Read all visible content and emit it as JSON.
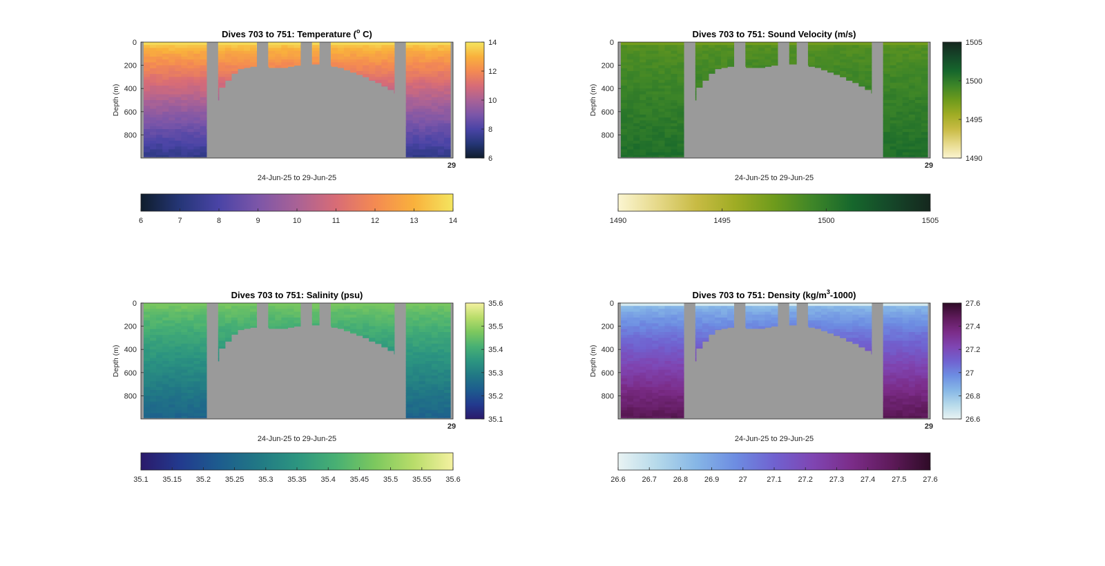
{
  "figure_title": "",
  "chart_data": [
    {
      "type": "heatmap",
      "title": "Dives 703 to 751: Temperature (°C)",
      "title_main": "Dives 703 to 751: Temperature (",
      "title_sup": "o",
      "title_tail": " C)",
      "xlabel": "24-Jun-25 to 29-Jun-25",
      "ylabel": "Depth (m)",
      "ylim": [
        0,
        1000
      ],
      "yticks": [
        "0",
        "200",
        "400",
        "600",
        "800"
      ],
      "xtick_label": "29",
      "cmap": [
        "#0f1d2c",
        "#253677",
        "#4a44a6",
        "#7c56a8",
        "#a96296",
        "#d86c76",
        "#f48a52",
        "#f9b13c",
        "#f4e55f"
      ],
      "clim": [
        6,
        14
      ],
      "side_ticks": [
        "6",
        "8",
        "10",
        "12",
        "14"
      ],
      "bottom_ticks": [
        "6",
        "7",
        "8",
        "9",
        "10",
        "11",
        "12",
        "13",
        "14"
      ],
      "surface_value": 13.3,
      "deep_value": 7.3
    },
    {
      "type": "heatmap",
      "title": "Dives 703 to 751: Sound Velocity (m/s)",
      "title_main": "Dives 703 to 751: Sound Velocity (m/s)",
      "title_sup": "",
      "title_tail": "",
      "xlabel": "24-Jun-25 to 29-Jun-25",
      "ylabel": "Depth (m)",
      "ylim": [
        0,
        1000
      ],
      "yticks": [
        "0",
        "200",
        "400",
        "600",
        "800"
      ],
      "xtick_label": "29",
      "cmap": [
        "#fbf5d1",
        "#e6d98a",
        "#c8bb44",
        "#9fac24",
        "#6e9b1c",
        "#3d8528",
        "#16672c",
        "#154729",
        "#15271e"
      ],
      "clim": [
        1490,
        1505
      ],
      "side_ticks": [
        "1490",
        "1495",
        "1500",
        "1505"
      ],
      "bottom_ticks": [
        "1490",
        "1495",
        "1500",
        "1505"
      ],
      "surface_value": 1498.5,
      "deep_value": 1500.8
    },
    {
      "type": "heatmap",
      "title": "Dives 703 to 751: Salinity (psu)",
      "title_main": "Dives 703 to 751: Salinity (psu)",
      "title_sup": "",
      "title_tail": "",
      "xlabel": "24-Jun-25 to 29-Jun-25",
      "ylabel": "Depth (m)",
      "ylim": [
        0,
        1000
      ],
      "yticks": [
        "0",
        "200",
        "400",
        "600",
        "800"
      ],
      "xtick_label": "29",
      "cmap": [
        "#2b1a6b",
        "#223a8e",
        "#1d5c8e",
        "#217885",
        "#2c9580",
        "#48b073",
        "#7cc85e",
        "#b9dd6a",
        "#f4f1a0"
      ],
      "clim": [
        35.1,
        35.6
      ],
      "side_ticks": [
        "35.1",
        "35.2",
        "35.3",
        "35.4",
        "35.5",
        "35.6"
      ],
      "bottom_ticks": [
        "35.1",
        "35.15",
        "35.2",
        "35.25",
        "35.3",
        "35.35",
        "35.4",
        "35.45",
        "35.5",
        "35.55",
        "35.6"
      ],
      "surface_value": 35.46,
      "deep_value": 35.24
    },
    {
      "type": "heatmap",
      "title": "Dives 703 to 751: Density (kg/m³-1000)",
      "title_main": "Dives 703 to 751: Density (kg/m",
      "title_sup": "3",
      "title_tail": "-1000)",
      "xlabel": "24-Jun-25 to 29-Jun-25",
      "ylabel": "Depth (m)",
      "ylim": [
        0,
        1000
      ],
      "yticks": [
        "0",
        "200",
        "400",
        "600",
        "800"
      ],
      "xtick_label": "29",
      "cmap": [
        "#e9f3f3",
        "#b5d9ea",
        "#86b6e6",
        "#6d8de2",
        "#7062d0",
        "#7f45b2",
        "#7b2c88",
        "#5e1a5a",
        "#2f0b27"
      ],
      "clim": [
        26.6,
        27.6
      ],
      "side_ticks": [
        "26.6",
        "26.8",
        "27",
        "27.2",
        "27.4",
        "27.6"
      ],
      "bottom_ticks": [
        "26.6",
        "26.7",
        "26.8",
        "26.9",
        "27",
        "27.1",
        "27.2",
        "27.3",
        "27.4",
        "27.5",
        "27.6"
      ],
      "surface_value": 26.85,
      "deep_value": 27.5
    }
  ],
  "dives": {
    "count": 49,
    "max_depth_m": [
      990,
      990,
      990,
      990,
      990,
      990,
      990,
      990,
      990,
      990,
      990,
      500,
      390,
      330,
      270,
      230,
      220,
      210,
      210,
      210,
      220,
      220,
      220,
      210,
      200,
      200,
      190,
      190,
      190,
      200,
      210,
      220,
      240,
      260,
      280,
      300,
      330,
      350,
      380,
      410,
      440,
      990,
      990,
      990,
      990,
      990,
      990,
      990,
      990
    ],
    "gaps_after_dive": [
      10,
      18,
      25,
      28,
      40
    ],
    "surface_mixed_layer_m": 40
  }
}
